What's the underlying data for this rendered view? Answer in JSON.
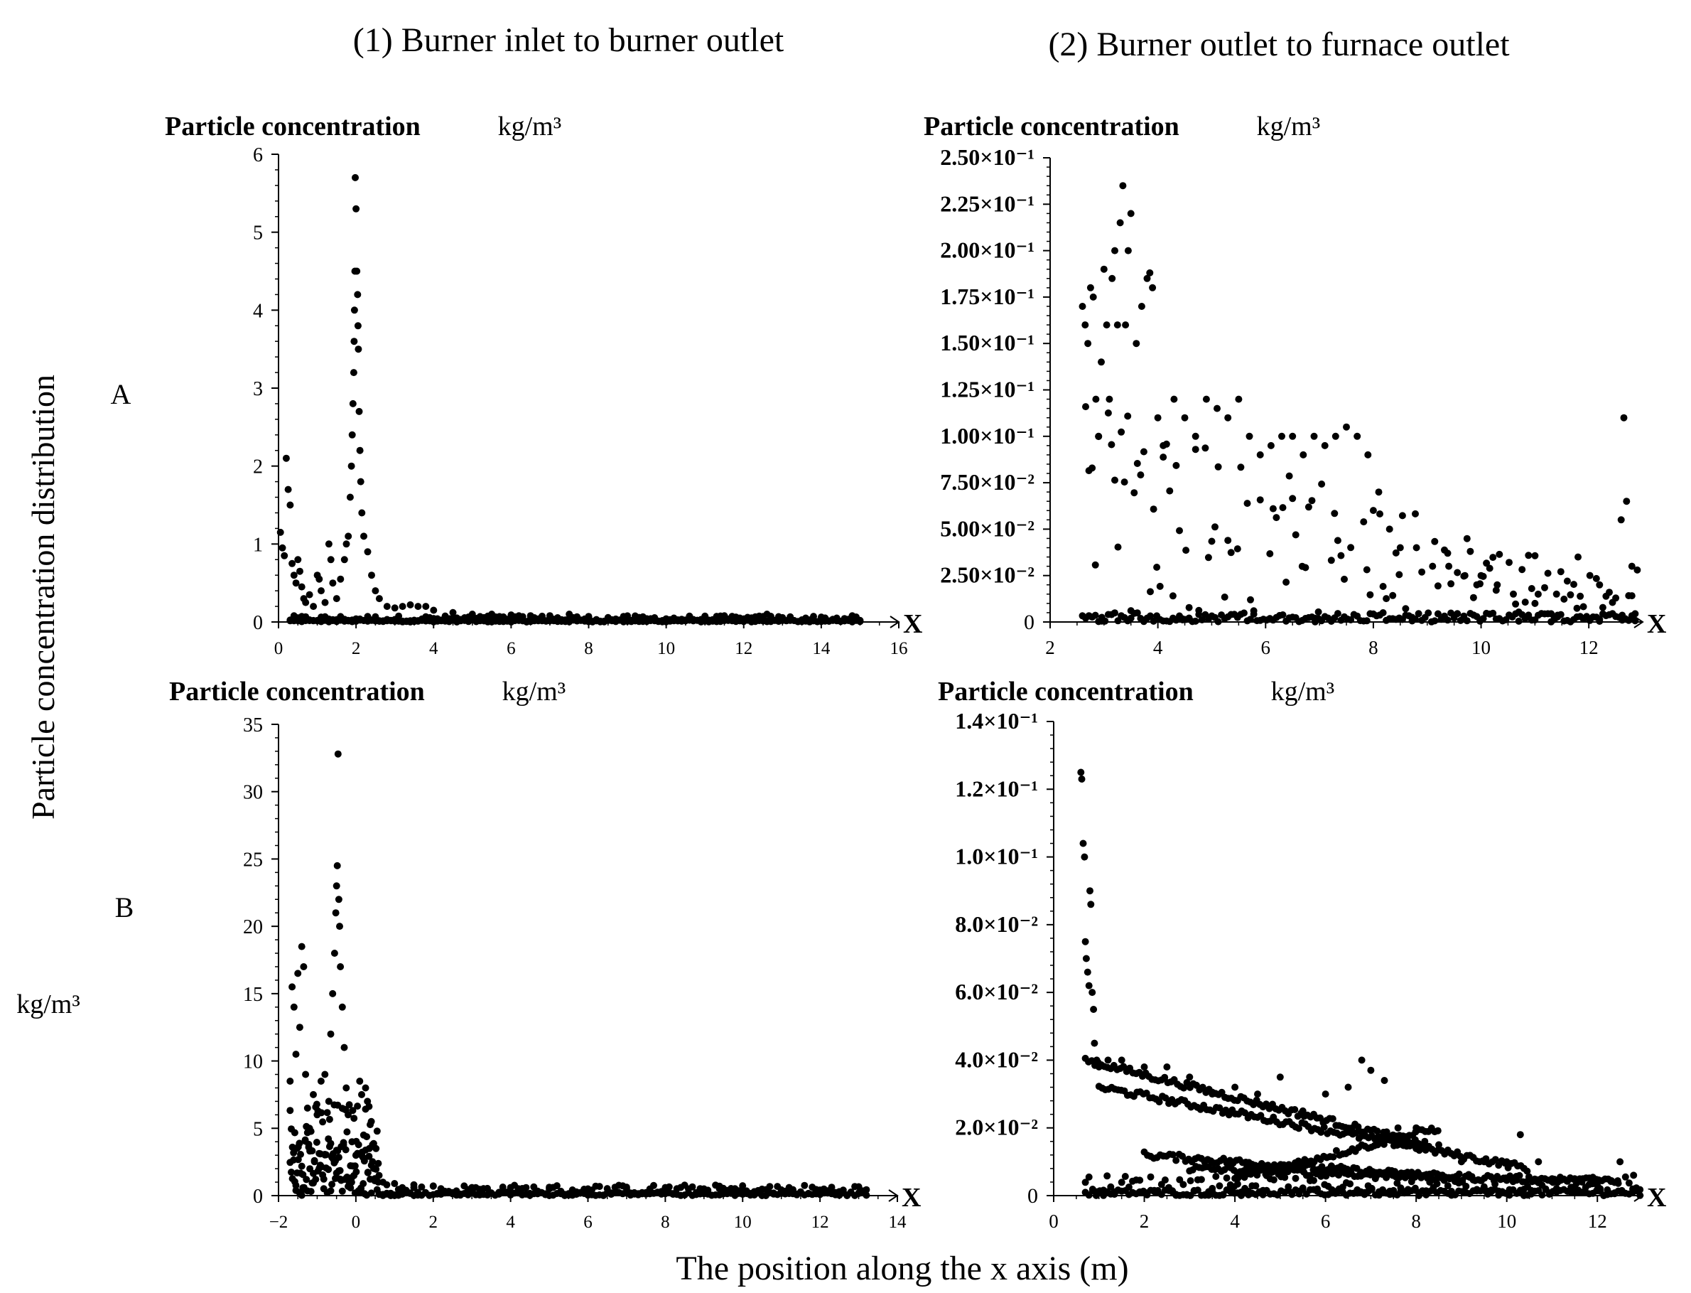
{
  "figure": {
    "column_titles": [
      "(1) Burner inlet to burner outlet",
      "(2) Burner outlet to furnace outlet"
    ],
    "row_labels": [
      "A",
      "B"
    ],
    "y_label": "Particle concentration  distribution",
    "y_unit": "kg/m³",
    "x_label": "The position along the x axis (m)"
  },
  "chart_data": [
    {
      "id": "A1",
      "type": "scatter",
      "title": "Particle concentration",
      "unit": "kg/m³",
      "x_axis_marker": "X",
      "xlim": [
        0,
        16
      ],
      "ylim": [
        0,
        6
      ],
      "x_ticks": [
        0,
        2,
        4,
        6,
        8,
        10,
        12,
        14,
        16
      ],
      "x_tick_labels": [
        "0",
        "2",
        "4",
        "6",
        "8",
        "10",
        "12",
        "14",
        "16"
      ],
      "y_ticks": [
        0,
        1,
        2,
        3,
        4,
        5,
        6
      ],
      "y_tick_labels": [
        "0",
        "1",
        "2",
        "3",
        "4",
        "5",
        "6"
      ],
      "points": [
        [
          0.05,
          1.15
        ],
        [
          0.1,
          0.95
        ],
        [
          0.15,
          0.85
        ],
        [
          0.2,
          2.1
        ],
        [
          0.25,
          1.7
        ],
        [
          0.3,
          1.5
        ],
        [
          0.35,
          0.75
        ],
        [
          0.4,
          0.6
        ],
        [
          0.45,
          0.5
        ],
        [
          0.5,
          0.8
        ],
        [
          0.55,
          0.65
        ],
        [
          0.6,
          0.45
        ],
        [
          0.65,
          0.3
        ],
        [
          0.7,
          0.25
        ],
        [
          0.8,
          0.35
        ],
        [
          0.9,
          0.2
        ],
        [
          1.0,
          0.6
        ],
        [
          1.05,
          0.55
        ],
        [
          1.1,
          0.4
        ],
        [
          1.2,
          0.25
        ],
        [
          1.3,
          1.0
        ],
        [
          1.35,
          0.8
        ],
        [
          1.4,
          0.5
        ],
        [
          1.5,
          0.3
        ],
        [
          1.6,
          0.55
        ],
        [
          1.7,
          0.8
        ],
        [
          1.75,
          1.0
        ],
        [
          1.8,
          1.1
        ],
        [
          1.85,
          1.6
        ],
        [
          1.88,
          2.0
        ],
        [
          1.9,
          2.4
        ],
        [
          1.92,
          2.8
        ],
        [
          1.94,
          3.2
        ],
        [
          1.95,
          3.6
        ],
        [
          1.96,
          4.0
        ],
        [
          1.97,
          4.5
        ],
        [
          1.98,
          5.7
        ],
        [
          2.0,
          5.3
        ],
        [
          2.02,
          4.5
        ],
        [
          2.04,
          4.2
        ],
        [
          2.05,
          3.8
        ],
        [
          2.06,
          3.5
        ],
        [
          2.08,
          2.7
        ],
        [
          2.1,
          2.2
        ],
        [
          2.12,
          1.8
        ],
        [
          2.15,
          1.4
        ],
        [
          2.2,
          1.1
        ],
        [
          2.3,
          0.9
        ],
        [
          2.4,
          0.6
        ],
        [
          2.5,
          0.4
        ],
        [
          2.6,
          0.3
        ],
        [
          2.8,
          0.2
        ],
        [
          3.0,
          0.18
        ],
        [
          3.2,
          0.2
        ],
        [
          3.4,
          0.22
        ],
        [
          3.6,
          0.2
        ],
        [
          3.8,
          0.2
        ],
        [
          4.0,
          0.15
        ],
        [
          4.5,
          0.12
        ],
        [
          5.0,
          0.1
        ],
        [
          5.5,
          0.1
        ],
        [
          6.0,
          0.09
        ],
        [
          6.5,
          0.08
        ],
        [
          7.0,
          0.08
        ],
        [
          7.5,
          0.1
        ],
        [
          8.0,
          0.06
        ],
        [
          8.5,
          0.05
        ],
        [
          9.0,
          0.05
        ],
        [
          10.0,
          0.04
        ],
        [
          11.0,
          0.03
        ],
        [
          12.0,
          0.04
        ],
        [
          12.6,
          0.1
        ],
        [
          13.0,
          0.03
        ],
        [
          13.6,
          0.05
        ],
        [
          14.0,
          0.02
        ],
        [
          15.0,
          0.02
        ]
      ],
      "dense_band": {
        "x_start": 0.3,
        "x_end": 15.0,
        "step": 0.1,
        "y_max": 0.08
      }
    },
    {
      "id": "A2",
      "type": "scatter",
      "title": "Particle concentration",
      "unit": "kg/m³",
      "x_axis_marker": "X",
      "xlim": [
        2,
        13
      ],
      "ylim": [
        0,
        0.25
      ],
      "x_ticks": [
        2,
        4,
        6,
        8,
        10,
        12
      ],
      "x_tick_labels": [
        "2",
        "4",
        "6",
        "8",
        "10",
        "12"
      ],
      "y_ticks": [
        0,
        0.025,
        0.05,
        0.075,
        0.1,
        0.125,
        0.15,
        0.175,
        0.2,
        0.225,
        0.25
      ],
      "y_tick_labels": [
        "0",
        "2.50×10⁻²",
        "5.00×10⁻²",
        "7.50×10⁻²",
        "1.00×10⁻¹",
        "1.25×10⁻¹",
        "1.50×10⁻¹",
        "1.75×10⁻¹",
        "2.00×10⁻¹",
        "2.25×10⁻¹",
        "2.50×10⁻¹"
      ],
      "points": [
        [
          2.6,
          0.17
        ],
        [
          2.65,
          0.16
        ],
        [
          2.7,
          0.15
        ],
        [
          2.75,
          0.18
        ],
        [
          2.8,
          0.175
        ],
        [
          2.85,
          0.12
        ],
        [
          2.9,
          0.1
        ],
        [
          2.95,
          0.14
        ],
        [
          3.0,
          0.19
        ],
        [
          3.05,
          0.16
        ],
        [
          3.1,
          0.12
        ],
        [
          3.15,
          0.185
        ],
        [
          3.2,
          0.2
        ],
        [
          3.25,
          0.16
        ],
        [
          3.3,
          0.215
        ],
        [
          3.35,
          0.235
        ],
        [
          3.4,
          0.16
        ],
        [
          3.45,
          0.2
        ],
        [
          3.5,
          0.22
        ],
        [
          3.6,
          0.15
        ],
        [
          3.7,
          0.17
        ],
        [
          3.8,
          0.185
        ],
        [
          3.85,
          0.188
        ],
        [
          3.9,
          0.18
        ],
        [
          4.0,
          0.11
        ],
        [
          4.1,
          0.095
        ],
        [
          4.3,
          0.12
        ],
        [
          4.5,
          0.11
        ],
        [
          4.7,
          0.1
        ],
        [
          4.9,
          0.12
        ],
        [
          5.1,
          0.115
        ],
        [
          5.3,
          0.11
        ],
        [
          5.5,
          0.12
        ],
        [
          5.7,
          0.1
        ],
        [
          5.9,
          0.09
        ],
        [
          6.1,
          0.095
        ],
        [
          6.3,
          0.1
        ],
        [
          6.5,
          0.1
        ],
        [
          6.7,
          0.09
        ],
        [
          6.9,
          0.1
        ],
        [
          7.1,
          0.095
        ],
        [
          7.3,
          0.1
        ],
        [
          7.5,
          0.105
        ],
        [
          7.7,
          0.1
        ],
        [
          7.9,
          0.09
        ],
        [
          8.1,
          0.07
        ],
        [
          8.3,
          0.05
        ],
        [
          8.5,
          0.04
        ],
        [
          8.8,
          0.04
        ],
        [
          9.1,
          0.03
        ],
        [
          9.4,
          0.03
        ],
        [
          9.7,
          0.025
        ],
        [
          10.0,
          0.025
        ],
        [
          10.3,
          0.02
        ],
        [
          10.6,
          0.015
        ],
        [
          11.0,
          0.01
        ],
        [
          11.4,
          0.015
        ],
        [
          11.8,
          0.035
        ],
        [
          12.2,
          0.02
        ],
        [
          12.6,
          0.055
        ],
        [
          12.65,
          0.11
        ],
        [
          12.7,
          0.065
        ],
        [
          12.8,
          0.03
        ],
        [
          12.9,
          0.028
        ]
      ],
      "scatter_band": {
        "x_start": 2.6,
        "x_end": 12.9,
        "step": 0.06,
        "y_top": 0.12,
        "y_floor": 0.005
      }
    },
    {
      "id": "B1",
      "type": "scatter",
      "title": "Particle concentration",
      "unit": "kg/m³",
      "x_axis_marker": "X",
      "xlim": [
        -2,
        14
      ],
      "ylim": [
        0,
        35
      ],
      "x_ticks": [
        -2,
        0,
        2,
        4,
        6,
        8,
        10,
        12,
        14
      ],
      "x_tick_labels": [
        "−2",
        "0",
        "2",
        "4",
        "6",
        "8",
        "10",
        "12",
        "14"
      ],
      "y_ticks": [
        0,
        5,
        10,
        15,
        20,
        25,
        30,
        35
      ],
      "y_tick_labels": [
        "0",
        "5",
        "10",
        "15",
        "20",
        "25",
        "30",
        "35"
      ],
      "points": [
        [
          -1.7,
          8.5
        ],
        [
          -1.65,
          15.5
        ],
        [
          -1.6,
          14.0
        ],
        [
          -1.55,
          10.5
        ],
        [
          -1.5,
          16.5
        ],
        [
          -1.45,
          12.5
        ],
        [
          -1.4,
          18.5
        ],
        [
          -1.35,
          17.0
        ],
        [
          -1.3,
          9.0
        ],
        [
          -1.25,
          6.5
        ],
        [
          -1.2,
          5.0
        ],
        [
          -1.1,
          7.5
        ],
        [
          -1.0,
          6.0
        ],
        [
          -0.9,
          8.5
        ],
        [
          -0.8,
          9.0
        ],
        [
          -0.7,
          7.0
        ],
        [
          -0.65,
          12.0
        ],
        [
          -0.6,
          15.0
        ],
        [
          -0.55,
          18.0
        ],
        [
          -0.52,
          21.0
        ],
        [
          -0.5,
          23.0
        ],
        [
          -0.48,
          24.5
        ],
        [
          -0.46,
          32.8
        ],
        [
          -0.44,
          22.0
        ],
        [
          -0.42,
          20.0
        ],
        [
          -0.4,
          17.0
        ],
        [
          -0.35,
          14.0
        ],
        [
          -0.3,
          11.0
        ],
        [
          -0.25,
          8.0
        ],
        [
          -0.2,
          6.0
        ],
        [
          -0.1,
          4.0
        ],
        [
          0.0,
          3.0
        ],
        [
          0.1,
          8.5
        ],
        [
          0.15,
          7.5
        ],
        [
          0.2,
          4.5
        ],
        [
          0.25,
          8.0
        ],
        [
          0.3,
          7.0
        ],
        [
          0.35,
          3.5
        ],
        [
          0.4,
          5.5
        ],
        [
          0.5,
          2.0
        ],
        [
          0.6,
          1.5
        ],
        [
          0.7,
          1.0
        ],
        [
          0.8,
          0.8
        ],
        [
          1.0,
          0.9
        ],
        [
          1.5,
          0.8
        ],
        [
          2.0,
          0.7
        ],
        [
          3.0,
          0.6
        ],
        [
          4.0,
          0.6
        ],
        [
          5.0,
          0.5
        ],
        [
          6.0,
          0.5
        ],
        [
          7.0,
          0.5
        ],
        [
          8.0,
          0.6
        ],
        [
          9.0,
          0.5
        ],
        [
          9.4,
          0.7
        ],
        [
          10.0,
          0.4
        ],
        [
          11.0,
          0.3
        ],
        [
          12.0,
          0.2
        ],
        [
          13.0,
          0.2
        ]
      ],
      "dense_cluster": {
        "x_start": -1.7,
        "x_end": 0.6,
        "step": 0.03,
        "y_max": 7.0
      },
      "dense_band": {
        "x_start": 0.6,
        "x_end": 13.2,
        "step": 0.1,
        "y_max": 0.8
      }
    },
    {
      "id": "B2",
      "type": "scatter",
      "title": "Particle concentration",
      "unit": "kg/m³",
      "x_axis_marker": "X",
      "xlim": [
        0,
        13
      ],
      "ylim": [
        0,
        0.14
      ],
      "x_ticks": [
        0,
        2,
        4,
        6,
        8,
        10,
        12
      ],
      "x_tick_labels": [
        "0",
        "2",
        "4",
        "6",
        "8",
        "10",
        "12"
      ],
      "y_ticks": [
        0,
        0.02,
        0.04,
        0.06,
        0.08,
        0.1,
        0.12,
        0.14
      ],
      "y_tick_labels": [
        "0",
        "2.0×10⁻²",
        "4.0×10⁻²",
        "6.0×10⁻²",
        "8.0×10⁻²",
        "1.0×10⁻¹",
        "1.2×10⁻¹",
        "1.4×10⁻¹"
      ],
      "points": [
        [
          0.6,
          0.125
        ],
        [
          0.62,
          0.123
        ],
        [
          0.65,
          0.104
        ],
        [
          0.68,
          0.1
        ],
        [
          0.7,
          0.075
        ],
        [
          0.72,
          0.07
        ],
        [
          0.75,
          0.066
        ],
        [
          0.78,
          0.062
        ],
        [
          0.8,
          0.09
        ],
        [
          0.82,
          0.086
        ],
        [
          0.85,
          0.06
        ],
        [
          0.88,
          0.055
        ],
        [
          0.9,
          0.045
        ],
        [
          0.95,
          0.04
        ],
        [
          1.0,
          0.038
        ],
        [
          1.2,
          0.04
        ],
        [
          1.5,
          0.04
        ],
        [
          2.0,
          0.038
        ],
        [
          2.5,
          0.038
        ],
        [
          3.0,
          0.035
        ],
        [
          3.5,
          0.03
        ],
        [
          4.0,
          0.032
        ],
        [
          4.5,
          0.03
        ],
        [
          5.0,
          0.035
        ],
        [
          5.5,
          0.025
        ],
        [
          6.0,
          0.03
        ],
        [
          6.5,
          0.032
        ],
        [
          6.8,
          0.04
        ],
        [
          7.0,
          0.037
        ],
        [
          7.3,
          0.034
        ],
        [
          7.6,
          0.02
        ],
        [
          8.0,
          0.02
        ],
        [
          8.5,
          0.015
        ],
        [
          9.0,
          0.01
        ],
        [
          9.5,
          0.01
        ],
        [
          10.0,
          0.01
        ],
        [
          10.3,
          0.018
        ],
        [
          10.7,
          0.01
        ],
        [
          11.0,
          0.005
        ],
        [
          11.5,
          0.005
        ],
        [
          12.0,
          0.003
        ],
        [
          12.5,
          0.01
        ],
        [
          12.8,
          0.006
        ]
      ],
      "line_bands": [
        {
          "x_start": 0.7,
          "x_end": 8.2,
          "y_start": 0.04,
          "y_end": 0.015
        },
        {
          "x_start": 1.0,
          "x_end": 10.5,
          "y_start": 0.032,
          "y_end": 0.008
        },
        {
          "x_start": 2.0,
          "x_end": 9.0,
          "y_start": 0.012,
          "y_end": 0.005
        },
        {
          "x_start": 3.0,
          "x_end": 12.5,
          "y_start": 0.008,
          "y_end": 0.004
        },
        {
          "x_start": 4.0,
          "x_end": 8.5,
          "y_start": 0.005,
          "y_end": 0.02
        }
      ],
      "dense_band": {
        "x_start": 0.7,
        "x_end": 13.0,
        "step": 0.08,
        "y_max": 0.006
      }
    }
  ]
}
